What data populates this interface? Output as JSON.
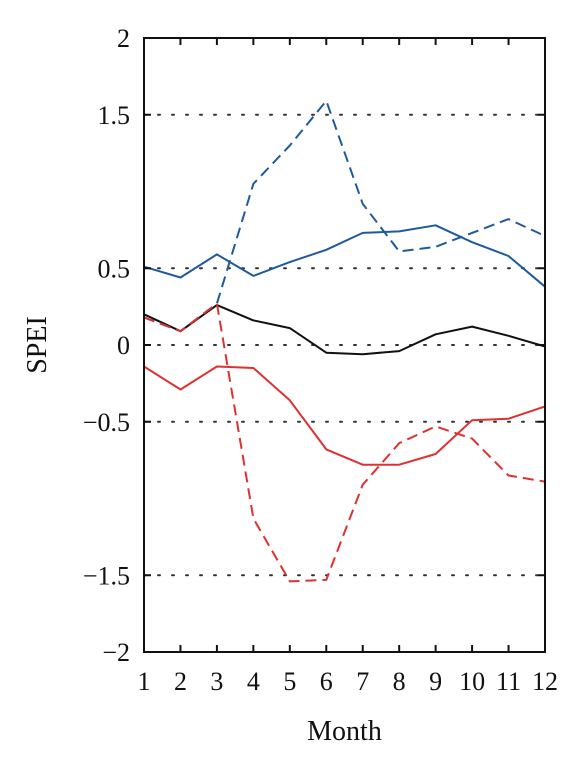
{
  "chart_data": {
    "type": "line",
    "xlabel": "Month",
    "ylabel": "SPEI",
    "xlim": [
      1,
      12
    ],
    "ylim": [
      -2,
      2
    ],
    "x": [
      1,
      2,
      3,
      4,
      5,
      6,
      7,
      8,
      9,
      10,
      11,
      12
    ],
    "x_tick_labels": [
      "1",
      "2",
      "3",
      "4",
      "5",
      "6",
      "7",
      "8",
      "9",
      "10",
      "11",
      "12"
    ],
    "y_ticks": [
      2,
      1.5,
      0.5,
      0,
      -0.5,
      -1.5,
      -2
    ],
    "y_tick_labels": [
      "2",
      "1.5",
      "0.5",
      "0",
      "−0.5",
      "−1.5",
      "−2"
    ],
    "gridlines_y": [
      1.5,
      0.5,
      0,
      -0.5,
      -1.5
    ],
    "grid": "horizontal dotted",
    "series": [
      {
        "color": "#1f5a9e",
        "dash": "solid",
        "values": [
          0.51,
          0.44,
          0.59,
          0.45,
          0.54,
          0.62,
          0.73,
          0.74,
          0.78,
          0.67,
          0.58,
          0.38
        ]
      },
      {
        "color": "#1f5a9e",
        "dash": "dashed",
        "values": [
          0.18,
          0.09,
          0.27,
          1.05,
          1.3,
          1.59,
          0.92,
          0.61,
          0.64,
          0.73,
          0.82,
          0.71
        ]
      },
      {
        "color": "#111111",
        "dash": "solid",
        "values": [
          0.2,
          0.09,
          0.26,
          0.16,
          0.11,
          -0.05,
          -0.06,
          -0.04,
          0.07,
          0.12,
          0.06,
          -0.01
        ]
      },
      {
        "color": "#e03030",
        "dash": "solid",
        "values": [
          -0.14,
          -0.29,
          -0.14,
          -0.15,
          -0.36,
          -0.68,
          -0.78,
          -0.78,
          -0.71,
          -0.49,
          -0.48,
          -0.4
        ]
      },
      {
        "color": "#e03030",
        "dash": "dashed",
        "values": [
          0.18,
          0.09,
          0.27,
          -1.13,
          -1.54,
          -1.53,
          -0.91,
          -0.64,
          -0.53,
          -0.61,
          -0.85,
          -0.89
        ]
      }
    ]
  }
}
